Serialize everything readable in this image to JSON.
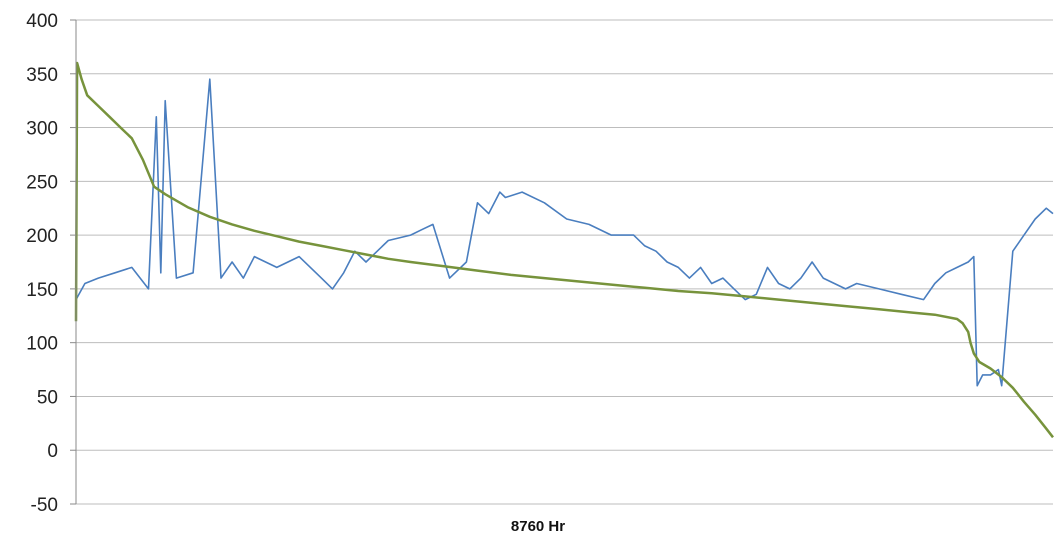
{
  "chart_data": {
    "type": "line",
    "title": "",
    "xlabel": "8760 Hr",
    "ylabel": "",
    "ylim": [
      -50,
      400
    ],
    "yticks": [
      -50,
      0,
      50,
      100,
      150,
      200,
      250,
      300,
      350,
      400
    ],
    "xlim": [
      0,
      8760
    ],
    "grid": "horizontal",
    "legend": "none",
    "colors": {
      "hourly": "#4a7ebf",
      "duration": "#77933c",
      "grid": "#bdbdbd",
      "axis": "#8a8a8a"
    },
    "series": [
      {
        "key": "hourly",
        "x": [
          0,
          80,
          200,
          350,
          500,
          650,
          720,
          760,
          800,
          900,
          1050,
          1200,
          1300,
          1400,
          1500,
          1600,
          1800,
          2000,
          2200,
          2300,
          2400,
          2500,
          2600,
          2800,
          3000,
          3100,
          3200,
          3350,
          3500,
          3600,
          3700,
          3800,
          3850,
          4000,
          4200,
          4400,
          4600,
          4800,
          4900,
          5000,
          5100,
          5200,
          5300,
          5400,
          5500,
          5600,
          5700,
          5800,
          5900,
          6000,
          6100,
          6200,
          6300,
          6400,
          6500,
          6600,
          6700,
          6800,
          6900,
          7000,
          7200,
          7400,
          7600,
          7700,
          7800,
          7900,
          8000,
          8050,
          8080,
          8130,
          8200,
          8270,
          8300,
          8400,
          8500,
          8600,
          8700,
          8760
        ],
        "values": [
          140,
          155,
          160,
          165,
          170,
          150,
          310,
          165,
          325,
          160,
          165,
          345,
          160,
          175,
          160,
          180,
          170,
          180,
          160,
          150,
          165,
          185,
          175,
          195,
          200,
          205,
          210,
          160,
          175,
          230,
          220,
          240,
          235,
          240,
          230,
          215,
          210,
          200,
          200,
          200,
          190,
          185,
          175,
          170,
          160,
          170,
          155,
          160,
          150,
          140,
          145,
          170,
          155,
          150,
          160,
          175,
          160,
          155,
          150,
          155,
          150,
          145,
          140,
          155,
          165,
          170,
          175,
          180,
          60,
          70,
          70,
          75,
          60,
          185,
          200,
          215,
          225,
          220
        ]
      },
      {
        "key": "duration",
        "x": [
          0,
          10,
          50,
          100,
          200,
          300,
          400,
          500,
          600,
          700,
          800,
          900,
          1000,
          1200,
          1400,
          1600,
          1800,
          2000,
          2200,
          2400,
          2600,
          2800,
          3000,
          3300,
          3600,
          3900,
          4200,
          4500,
          4800,
          5100,
          5400,
          5700,
          6000,
          6300,
          6600,
          6900,
          7200,
          7500,
          7700,
          7900,
          7950,
          8000,
          8020,
          8050,
          8100,
          8200,
          8300,
          8400,
          8500,
          8600,
          8700,
          8760
        ],
        "values": [
          120,
          360,
          345,
          330,
          320,
          310,
          300,
          290,
          270,
          245,
          238,
          232,
          226,
          217,
          210,
          204,
          199,
          194,
          190,
          186,
          182,
          178,
          175,
          171,
          167,
          163,
          160,
          157,
          154,
          151,
          148,
          146,
          143,
          140,
          137,
          134,
          131,
          128,
          126,
          122,
          118,
          110,
          100,
          90,
          82,
          76,
          68,
          58,
          45,
          33,
          20,
          12
        ]
      }
    ]
  }
}
